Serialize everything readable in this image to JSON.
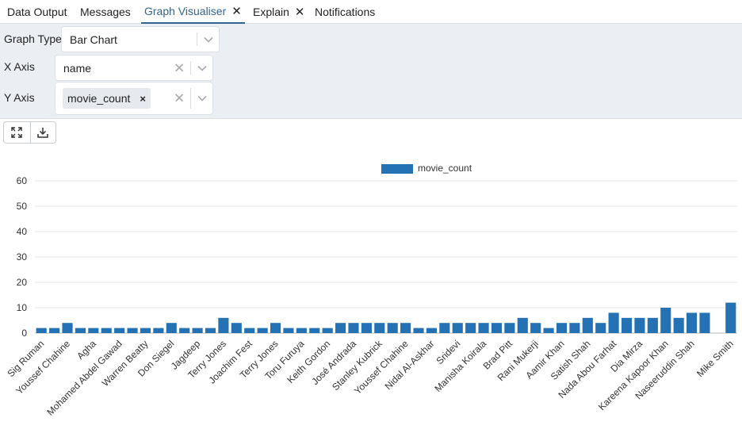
{
  "tabs": [
    {
      "label": "Data Output",
      "active": false,
      "closable": false
    },
    {
      "label": "Messages",
      "active": false,
      "closable": false
    },
    {
      "label": "Graph Visualiser",
      "active": true,
      "closable": true
    },
    {
      "label": "Explain",
      "active": false,
      "closable": true
    },
    {
      "label": "Notifications",
      "active": false,
      "closable": false
    }
  ],
  "form": {
    "graph_type_label": "Graph Type",
    "graph_type_value": "Bar Chart",
    "x_axis_label": "X Axis",
    "x_axis_value": "name",
    "y_axis_label": "Y Axis",
    "y_axis_chip": "movie_count"
  },
  "toolbar": {
    "expand_icon": "expand-icon",
    "download_icon": "download-icon"
  },
  "colors": {
    "bar": "#2472b4",
    "active_tab": "#326690",
    "form_background": "#ebeef3"
  },
  "chart_data": {
    "type": "bar",
    "legend": [
      "movie_count"
    ],
    "legend_position": "top-center",
    "ylim": [
      0,
      60
    ],
    "yticks": [
      0,
      10,
      20,
      30,
      40,
      50,
      60
    ],
    "grid": true,
    "categories": [
      "Sig Ruman",
      "",
      "Youssef Chahine",
      "",
      "Agha",
      "",
      "Mohamed Abdel Gawad",
      "",
      "Warren Beatty",
      "",
      "Don Siegel",
      "",
      "Jagdeep",
      "",
      "Terry Jones",
      "",
      "Joachim Fest",
      "",
      "Terry Jones",
      "",
      "Toru Furuya",
      "",
      "Keith Gordon",
      "",
      "José Andrada",
      "",
      "Stanley Kubrick",
      "",
      "Youssef Chahine",
      "",
      "Nidal Al-Askhar",
      "",
      "Sridevi",
      "",
      "Manisha Koirala",
      "",
      "Brad Pitt",
      "",
      "Rani Mukerji",
      "",
      "Aamir Khan",
      "",
      "Satish Shah",
      "",
      "Nada Abou Farhat",
      "",
      "Dia Mirza",
      "",
      "Kareena Kapoor Khan",
      "",
      "Naseeruddin Shah",
      "",
      "",
      "Mike Smith"
    ],
    "series": [
      {
        "name": "movie_count",
        "values": [
          2,
          2,
          4,
          2,
          2,
          2,
          2,
          2,
          2,
          2,
          4,
          2,
          2,
          2,
          6,
          4,
          2,
          2,
          4,
          2,
          2,
          2,
          2,
          4,
          4,
          4,
          4,
          4,
          4,
          2,
          2,
          4,
          4,
          4,
          4,
          4,
          4,
          6,
          4,
          2,
          4,
          4,
          6,
          4,
          8,
          6,
          6,
          6,
          10,
          6,
          8,
          8,
          0,
          12
        ]
      }
    ]
  }
}
